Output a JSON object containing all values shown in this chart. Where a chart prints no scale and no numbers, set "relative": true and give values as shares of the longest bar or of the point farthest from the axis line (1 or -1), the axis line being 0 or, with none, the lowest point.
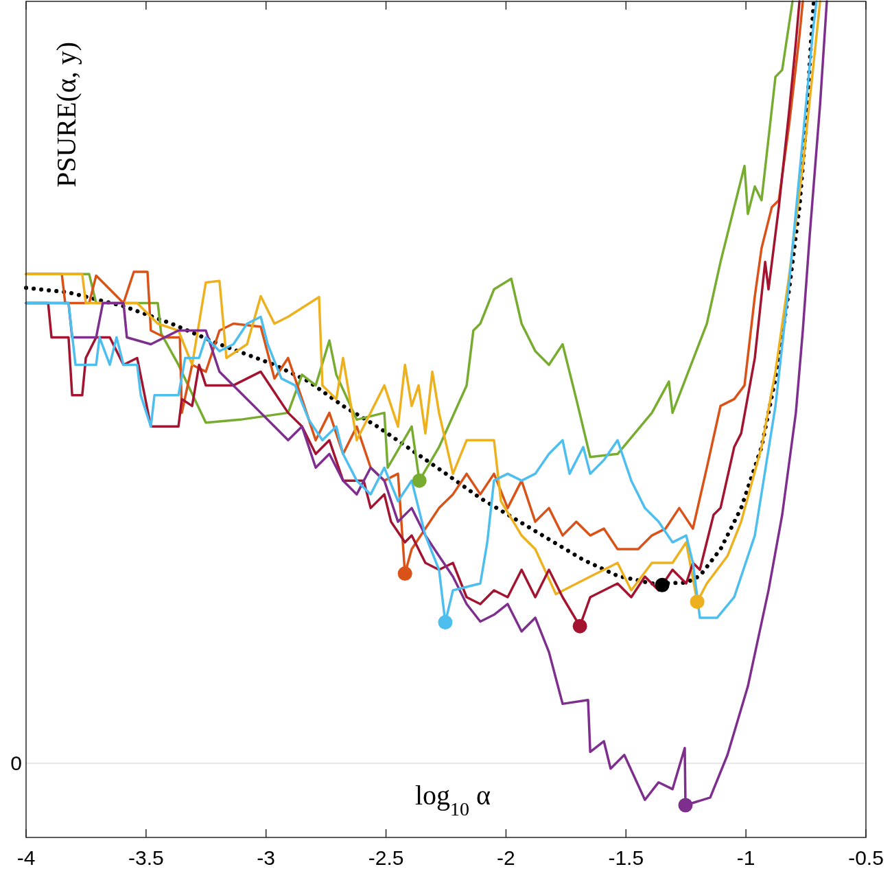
{
  "chart_data": {
    "type": "line",
    "relative": true,
    "xlabel": "log$_{10}$ α",
    "ylabel": "PSURE(α, y)",
    "xlim": [
      -4,
      -0.5
    ],
    "xticks": [
      -4,
      -3.5,
      -3,
      -2.5,
      -2,
      -1.5,
      -1,
      -0.5
    ],
    "line_style": "solid",
    "marker": "none",
    "ref_lines": [
      {
        "axis": "y",
        "value": 0,
        "label": "0",
        "color": "#e0e0e0"
      }
    ],
    "series": [
      {
        "color": "#000000",
        "line_style": "dotted",
        "x": [
          -4.0,
          -3.823,
          -3.594,
          -3.394,
          -3.194,
          -2.965,
          -2.822,
          -2.679,
          -2.536,
          -2.393,
          -2.25,
          -2.107,
          -1.964,
          -1.821,
          -1.678,
          -1.535,
          -1.392,
          -1.249,
          -1.192,
          -1.106,
          -1.02,
          -0.935,
          -0.877,
          -0.82,
          -0.777,
          -0.749,
          -0.729,
          -0.717
        ],
        "values": [
          0.624,
          0.618,
          0.6,
          0.577,
          0.55,
          0.523,
          0.501,
          0.469,
          0.442,
          0.411,
          0.38,
          0.348,
          0.321,
          0.294,
          0.267,
          0.246,
          0.236,
          0.237,
          0.246,
          0.281,
          0.335,
          0.415,
          0.505,
          0.622,
          0.73,
          0.838,
          0.946,
          1
        ]
      },
      {
        "color": "#77ac30",
        "x": [
          -4.0,
          -3.737,
          -3.708,
          -3.451,
          -3.437,
          -3.365,
          -3.251,
          -3.108,
          -2.908,
          -2.85,
          -2.793,
          -2.736,
          -2.707,
          -2.622,
          -2.507,
          -2.493,
          -2.393,
          -2.361,
          -2.279,
          -2.164,
          -2.136,
          -2.107,
          -2.05,
          -1.978,
          -1.935,
          -1.878,
          -1.821,
          -1.764,
          -1.707,
          -1.649,
          -1.535,
          -1.392,
          -1.321,
          -1.306,
          -1.163,
          -1.106,
          -1.006,
          -0.992,
          -0.963,
          -0.935,
          -0.877,
          -0.849,
          -0.806
        ],
        "values": [
          0.642,
          0.642,
          0.604,
          0.604,
          0.564,
          0.523,
          0.447,
          0.451,
          0.46,
          0.51,
          0.496,
          0.555,
          0.51,
          0.451,
          0.46,
          0.388,
          0.442,
          0.371,
          0.415,
          0.496,
          0.568,
          0.577,
          0.622,
          0.636,
          0.577,
          0.541,
          0.523,
          0.55,
          0.478,
          0.402,
          0.406,
          0.46,
          0.501,
          0.46,
          0.577,
          0.658,
          0.784,
          0.721,
          0.757,
          0.739,
          0.901,
          0.91,
          1
        ]
      },
      {
        "color": "#d95319",
        "x": [
          -4.0,
          -3.851,
          -3.837,
          -3.737,
          -3.708,
          -3.594,
          -3.551,
          -3.494,
          -3.48,
          -3.422,
          -3.359,
          -3.351,
          -3.308,
          -3.251,
          -3.194,
          -3.136,
          -3.022,
          -2.965,
          -2.908,
          -2.85,
          -2.793,
          -2.736,
          -2.679,
          -2.622,
          -2.564,
          -2.507,
          -2.45,
          -2.421,
          -2.393,
          -2.336,
          -2.279,
          -2.221,
          -2.164,
          -2.107,
          -2.05,
          -1.993,
          -1.935,
          -1.878,
          -1.821,
          -1.764,
          -1.707,
          -1.649,
          -1.592,
          -1.535,
          -1.449,
          -1.392,
          -1.335,
          -1.278,
          -1.221,
          -1.163,
          -1.106,
          -1.049,
          -1.006,
          -0.963,
          -0.935,
          -0.892,
          -0.863,
          -0.82,
          -0.777,
          -0.763
        ],
        "values": [
          0.642,
          0.642,
          0.604,
          0.604,
          0.64,
          0.604,
          0.645,
          0.645,
          0.568,
          0.559,
          0.559,
          0.46,
          0.523,
          0.514,
          0.568,
          0.577,
          0.573,
          0.505,
          0.532,
          0.478,
          0.424,
          0.46,
          0.406,
          0.442,
          0.388,
          0.371,
          0.38,
          0.249,
          0.281,
          0.308,
          0.335,
          0.353,
          0.38,
          0.353,
          0.38,
          0.335,
          0.371,
          0.317,
          0.335,
          0.299,
          0.317,
          0.299,
          0.308,
          0.281,
          0.281,
          0.299,
          0.308,
          0.335,
          0.308,
          0.388,
          0.469,
          0.478,
          0.496,
          0.613,
          0.676,
          0.73,
          0.739,
          0.838,
          0.955,
          1
        ]
      },
      {
        "color": "#edb120",
        "x": [
          -4.0,
          -3.766,
          -3.751,
          -3.537,
          -3.451,
          -3.365,
          -3.308,
          -3.251,
          -3.194,
          -3.165,
          -3.079,
          -3.022,
          -2.965,
          -2.908,
          -2.779,
          -2.765,
          -2.707,
          -2.679,
          -2.622,
          -2.507,
          -2.45,
          -2.421,
          -2.393,
          -2.364,
          -2.336,
          -2.307,
          -2.279,
          -2.221,
          -2.164,
          -2.05,
          -2.021,
          -1.935,
          -1.878,
          -1.792,
          -1.649,
          -1.535,
          -1.478,
          -1.392,
          -1.306,
          -1.249,
          -1.203,
          -1.163,
          -1.077,
          -1.02,
          -0.935,
          -0.877,
          -0.82,
          -0.763,
          -0.706,
          -0.691
        ],
        "values": [
          0.642,
          0.642,
          0.604,
          0.604,
          0.577,
          0.568,
          0.523,
          0.631,
          0.633,
          0.532,
          0.55,
          0.613,
          0.577,
          0.586,
          0.612,
          0.496,
          0.478,
          0.532,
          0.424,
          0.496,
          0.442,
          0.523,
          0.469,
          0.496,
          0.433,
          0.514,
          0.46,
          0.38,
          0.424,
          0.424,
          0.344,
          0.299,
          0.281,
          0.222,
          0.245,
          0.263,
          0.227,
          0.263,
          0.263,
          0.29,
          0.212,
          0.236,
          0.272,
          0.317,
          0.415,
          0.514,
          0.64,
          0.784,
          0.955,
          1
        ]
      },
      {
        "color": "#a2142f",
        "x": [
          -4.0,
          -3.908,
          -3.894,
          -3.823,
          -3.808,
          -3.766,
          -3.751,
          -3.708,
          -3.651,
          -3.594,
          -3.537,
          -3.48,
          -3.365,
          -3.351,
          -3.308,
          -3.279,
          -3.251,
          -3.136,
          -3.022,
          -2.965,
          -2.908,
          -2.85,
          -2.793,
          -2.736,
          -2.679,
          -2.593,
          -2.564,
          -2.507,
          -2.479,
          -2.421,
          -2.393,
          -2.336,
          -2.279,
          -2.221,
          -2.164,
          -2.107,
          -2.05,
          -1.993,
          -1.935,
          -1.878,
          -1.821,
          -1.764,
          -1.692,
          -1.649,
          -1.535,
          -1.478,
          -1.421,
          -1.364,
          -1.306,
          -1.249,
          -1.221,
          -1.192,
          -1.135,
          -1.106,
          -1.049,
          -1.02,
          -0.963,
          -0.92,
          -0.906,
          -0.863,
          -0.82,
          -0.792,
          -0.777
        ],
        "values": [
          0.604,
          0.604,
          0.559,
          0.559,
          0.483,
          0.483,
          0.532,
          0.559,
          0.559,
          0.523,
          0.532,
          0.442,
          0.442,
          0.478,
          0.469,
          0.523,
          0.496,
          0.496,
          0.514,
          0.487,
          0.46,
          0.442,
          0.406,
          0.424,
          0.371,
          0.371,
          0.335,
          0.353,
          0.317,
          0.29,
          0.299,
          0.263,
          0.254,
          0.263,
          0.218,
          0.209,
          0.227,
          0.218,
          0.254,
          0.218,
          0.254,
          0.218,
          0.18,
          0.218,
          0.236,
          0.218,
          0.245,
          0.227,
          0.254,
          0.236,
          0.263,
          0.254,
          0.326,
          0.335,
          0.415,
          0.433,
          0.532,
          0.658,
          0.622,
          0.73,
          0.856,
          0.946,
          1
        ]
      },
      {
        "color": "#7e2f8e",
        "x": [
          -4.0,
          -3.823,
          -3.808,
          -3.708,
          -3.68,
          -3.594,
          -3.58,
          -3.48,
          -3.365,
          -3.251,
          -3.194,
          -3.079,
          -3.022,
          -2.965,
          -2.908,
          -2.85,
          -2.793,
          -2.736,
          -2.679,
          -2.622,
          -2.564,
          -2.507,
          -2.45,
          -2.393,
          -2.336,
          -2.279,
          -2.221,
          -2.164,
          -2.107,
          -2.05,
          -1.993,
          -1.935,
          -1.878,
          -1.821,
          -1.764,
          -1.658,
          -1.649,
          -1.592,
          -1.564,
          -1.507,
          -1.421,
          -1.364,
          -1.306,
          -1.255,
          -1.252,
          -1.149,
          -1.077,
          -0.992,
          -0.906,
          -0.849,
          -0.792,
          -0.763,
          -0.734,
          -0.691,
          -0.663
        ],
        "values": [
          0.604,
          0.604,
          0.559,
          0.559,
          0.604,
          0.604,
          0.559,
          0.55,
          0.568,
          0.568,
          0.514,
          0.478,
          0.46,
          0.442,
          0.424,
          0.442,
          0.388,
          0.406,
          0.371,
          0.353,
          0.388,
          0.371,
          0.317,
          0.335,
          0.299,
          0.272,
          0.245,
          0.209,
          0.186,
          0.195,
          0.209,
          0.173,
          0.191,
          0.146,
          0.078,
          0.083,
          0.015,
          0.029,
          -0.007,
          0.011,
          -0.048,
          -0.025,
          -0.034,
          0.02,
          -0.055,
          -0.045,
          0.011,
          0.101,
          0.227,
          0.326,
          0.46,
          0.568,
          0.694,
          0.865,
          1
        ]
      },
      {
        "color": "#4dbeee",
        "x": [
          -4.0,
          -3.823,
          -3.794,
          -3.708,
          -3.694,
          -3.651,
          -3.623,
          -3.594,
          -3.537,
          -3.522,
          -3.48,
          -3.465,
          -3.365,
          -3.337,
          -3.279,
          -3.251,
          -3.194,
          -3.136,
          -3.079,
          -3.022,
          -2.993,
          -2.936,
          -2.879,
          -2.822,
          -2.765,
          -2.707,
          -2.679,
          -2.622,
          -2.564,
          -2.507,
          -2.45,
          -2.393,
          -2.336,
          -2.279,
          -2.253,
          -2.221,
          -2.107,
          -2.078,
          -2.05,
          -1.993,
          -1.935,
          -1.878,
          -1.821,
          -1.764,
          -1.735,
          -1.678,
          -1.649,
          -1.592,
          -1.535,
          -1.478,
          -1.421,
          -1.364,
          -1.306,
          -1.249,
          -1.221,
          -1.192,
          -1.12,
          -1.049,
          -0.963,
          -0.877,
          -0.82,
          -0.763,
          -0.72,
          -0.706
        ],
        "values": [
          0.604,
          0.604,
          0.523,
          0.523,
          0.559,
          0.523,
          0.559,
          0.523,
          0.523,
          0.483,
          0.442,
          0.483,
          0.483,
          0.532,
          0.532,
          0.559,
          0.541,
          0.55,
          0.577,
          0.586,
          0.55,
          0.505,
          0.496,
          0.451,
          0.424,
          0.442,
          0.406,
          0.371,
          0.353,
          0.388,
          0.344,
          0.371,
          0.299,
          0.254,
          0.185,
          0.227,
          0.236,
          0.29,
          0.371,
          0.38,
          0.371,
          0.38,
          0.406,
          0.424,
          0.38,
          0.415,
          0.38,
          0.398,
          0.424,
          0.371,
          0.335,
          0.317,
          0.29,
          0.299,
          0.263,
          0.191,
          0.191,
          0.218,
          0.299,
          0.469,
          0.631,
          0.82,
          0.964,
          1
        ]
      },
      {
        "type": "scatter",
        "marker": "circle",
        "x": [
          -2.361,
          -2.421,
          -1.203,
          -1.692,
          -1.252,
          -2.253,
          -1.349
        ],
        "values": [
          0.371,
          0.249,
          0.212,
          0.18,
          -0.055,
          0.185,
          0.234
        ],
        "colors": [
          "#77ac30",
          "#d95319",
          "#edb120",
          "#a2142f",
          "#7e2f8e",
          "#4dbeee",
          "#000000"
        ]
      }
    ]
  }
}
